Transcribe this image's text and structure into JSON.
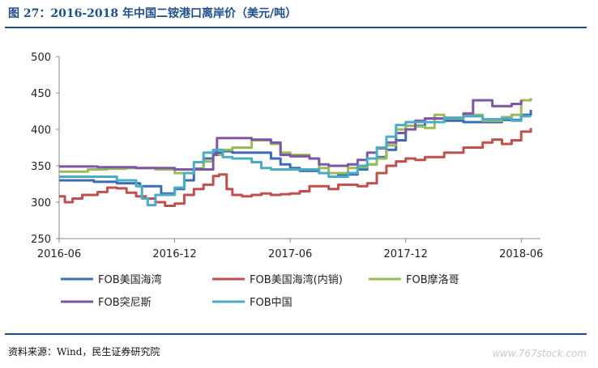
{
  "figure": {
    "title": "图 27：2016-2018 年中国二铵港口离岸价（美元/吨）",
    "source": "资料来源：Wind，民生证券研究院",
    "watermark": "www.767stock.com"
  },
  "colors": {
    "title_blue": "#1f4e8c",
    "series": [
      "#3c6db4",
      "#c0504d",
      "#9bbb59",
      "#7f56a6",
      "#4bacc6"
    ]
  },
  "chart_data": {
    "type": "line",
    "ylim": [
      250,
      500
    ],
    "yticks": [
      250,
      300,
      350,
      400,
      450,
      500
    ],
    "xlim": [
      0,
      25
    ],
    "xticks": [
      {
        "t": 0,
        "label": "2016-06"
      },
      {
        "t": 6,
        "label": "2016-12"
      },
      {
        "t": 12,
        "label": "2017-06"
      },
      {
        "t": 18,
        "label": "2017-12"
      },
      {
        "t": 24,
        "label": "2018-06"
      }
    ],
    "grid": false,
    "legend_position": "bottom",
    "series": [
      {
        "name": "FOB美国海湾",
        "points": [
          [
            0,
            330
          ],
          [
            1.5,
            330
          ],
          [
            1.8,
            328
          ],
          [
            3,
            326
          ],
          [
            4,
            326
          ],
          [
            4.2,
            322
          ],
          [
            5,
            322
          ],
          [
            5.3,
            312
          ],
          [
            6,
            318
          ],
          [
            6.5,
            330
          ],
          [
            7,
            346
          ],
          [
            7.5,
            360
          ],
          [
            8,
            368
          ],
          [
            8.5,
            370
          ],
          [
            9,
            368
          ],
          [
            10,
            368
          ],
          [
            11,
            360
          ],
          [
            11.5,
            352
          ],
          [
            12,
            347
          ],
          [
            12.5,
            343
          ],
          [
            13,
            343
          ],
          [
            13.5,
            340
          ],
          [
            14,
            340
          ],
          [
            14.5,
            337
          ],
          [
            15,
            338
          ],
          [
            15.5,
            345
          ],
          [
            16,
            352
          ],
          [
            16.5,
            362
          ],
          [
            17,
            372
          ],
          [
            17.5,
            385
          ],
          [
            18,
            400
          ],
          [
            18.5,
            405
          ],
          [
            19,
            410
          ],
          [
            20,
            412
          ],
          [
            21,
            410
          ],
          [
            22,
            410
          ],
          [
            23,
            413
          ],
          [
            24,
            420
          ],
          [
            24.5,
            427
          ]
        ]
      },
      {
        "name": "FOB美国海湾(内销)",
        "points": [
          [
            0,
            308
          ],
          [
            0.3,
            300
          ],
          [
            0.7,
            305
          ],
          [
            1.2,
            310
          ],
          [
            2,
            314
          ],
          [
            2.5,
            320
          ],
          [
            3,
            319
          ],
          [
            3.5,
            313
          ],
          [
            4,
            308
          ],
          [
            4.5,
            305
          ],
          [
            5,
            300
          ],
          [
            5.5,
            295
          ],
          [
            6,
            298
          ],
          [
            6.5,
            310
          ],
          [
            7,
            318
          ],
          [
            7.5,
            324
          ],
          [
            8,
            336
          ],
          [
            8.3,
            338
          ],
          [
            8.7,
            318
          ],
          [
            9,
            310
          ],
          [
            9.5,
            308
          ],
          [
            10,
            310
          ],
          [
            10.5,
            312
          ],
          [
            11,
            310
          ],
          [
            11.5,
            311
          ],
          [
            12,
            312
          ],
          [
            12.5,
            315
          ],
          [
            13,
            322
          ],
          [
            14,
            318
          ],
          [
            14.5,
            324
          ],
          [
            15,
            324
          ],
          [
            15.5,
            322
          ],
          [
            16,
            326
          ],
          [
            16.5,
            340
          ],
          [
            17,
            350
          ],
          [
            17.5,
            356
          ],
          [
            18,
            360
          ],
          [
            18.5,
            358
          ],
          [
            19,
            362
          ],
          [
            20,
            368
          ],
          [
            21,
            375
          ],
          [
            22,
            382
          ],
          [
            22.5,
            386
          ],
          [
            23,
            380
          ],
          [
            23.5,
            385
          ],
          [
            24,
            397
          ],
          [
            24.5,
            402
          ]
        ]
      },
      {
        "name": "FOB摩洛哥",
        "points": [
          [
            0,
            342
          ],
          [
            1.5,
            345
          ],
          [
            2.5,
            346
          ],
          [
            3.5,
            347
          ],
          [
            5,
            345
          ],
          [
            6,
            340
          ],
          [
            7,
            345
          ],
          [
            7.5,
            356
          ],
          [
            8,
            365
          ],
          [
            8.5,
            372
          ],
          [
            9,
            375
          ],
          [
            10,
            385
          ],
          [
            11,
            380
          ],
          [
            11.5,
            368
          ],
          [
            12,
            365
          ],
          [
            13,
            360
          ],
          [
            13.5,
            347
          ],
          [
            14,
            340
          ],
          [
            15,
            347
          ],
          [
            15.5,
            348
          ],
          [
            16,
            352
          ],
          [
            16.5,
            360
          ],
          [
            17,
            378
          ],
          [
            17.5,
            400
          ],
          [
            18,
            405
          ],
          [
            18.5,
            404
          ],
          [
            19,
            402
          ],
          [
            19.5,
            420
          ],
          [
            20,
            415
          ],
          [
            21,
            420
          ],
          [
            22,
            412
          ],
          [
            23,
            417
          ],
          [
            23.5,
            420
          ],
          [
            24,
            440
          ],
          [
            24.5,
            443
          ]
        ]
      },
      {
        "name": "FOB突尼斯",
        "points": [
          [
            0,
            349
          ],
          [
            1,
            349
          ],
          [
            2,
            348
          ],
          [
            3,
            348
          ],
          [
            4,
            347
          ],
          [
            5,
            347
          ],
          [
            6,
            345
          ],
          [
            7,
            345
          ],
          [
            8,
            365
          ],
          [
            8.2,
            388
          ],
          [
            9,
            388
          ],
          [
            10,
            386
          ],
          [
            11,
            382
          ],
          [
            11.5,
            365
          ],
          [
            12,
            363
          ],
          [
            13,
            360
          ],
          [
            13.5,
            352
          ],
          [
            14,
            350
          ],
          [
            15,
            352
          ],
          [
            15.5,
            358
          ],
          [
            16,
            368
          ],
          [
            16.5,
            374
          ],
          [
            17,
            382
          ],
          [
            17.5,
            395
          ],
          [
            18,
            400
          ],
          [
            18.5,
            412
          ],
          [
            19,
            415
          ],
          [
            20,
            416
          ],
          [
            21,
            422
          ],
          [
            21.5,
            440
          ],
          [
            22,
            440
          ],
          [
            22.5,
            432
          ],
          [
            23,
            432
          ],
          [
            23.5,
            435
          ],
          [
            24,
            440
          ]
        ]
      },
      {
        "name": "FOB中国",
        "points": [
          [
            0,
            335
          ],
          [
            1,
            335
          ],
          [
            2,
            335
          ],
          [
            3,
            330
          ],
          [
            4,
            322
          ],
          [
            4.3,
            305
          ],
          [
            4.6,
            296
          ],
          [
            5,
            310
          ],
          [
            6,
            320
          ],
          [
            6.5,
            340
          ],
          [
            7,
            355
          ],
          [
            7.5,
            368
          ],
          [
            8,
            372
          ],
          [
            8.5,
            362
          ],
          [
            9,
            360
          ],
          [
            10,
            355
          ],
          [
            10.5,
            347
          ],
          [
            11,
            345
          ],
          [
            12,
            345
          ],
          [
            13,
            345
          ],
          [
            13.5,
            340
          ],
          [
            14,
            335
          ],
          [
            15,
            340
          ],
          [
            15.5,
            350
          ],
          [
            16,
            360
          ],
          [
            16.5,
            375
          ],
          [
            17,
            390
          ],
          [
            17.5,
            406
          ],
          [
            18,
            410
          ],
          [
            19,
            410
          ],
          [
            20,
            416
          ],
          [
            21,
            418
          ],
          [
            22,
            414
          ],
          [
            23,
            415
          ],
          [
            23.5,
            412
          ],
          [
            24,
            418
          ],
          [
            24.5,
            418
          ]
        ]
      }
    ]
  }
}
